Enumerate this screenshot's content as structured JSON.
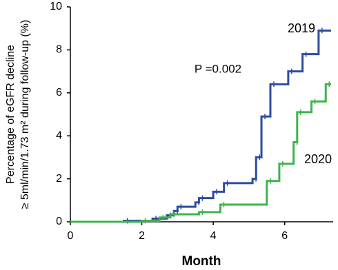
{
  "chart_data": {
    "type": "step",
    "x_label": "Month",
    "y_label": [
      "Percentage of eGFR decline",
      "≥ 5ml/min/1.73 m² during follow-up (%)"
    ],
    "annotations": [
      "P =0.002"
    ],
    "xlim": [
      0,
      7.3
    ],
    "xticks": [
      0,
      2,
      4,
      6
    ],
    "ylim": [
      0,
      10
    ],
    "yticks": [
      0,
      2,
      4,
      6,
      8,
      10
    ],
    "series": [
      {
        "name": "2019",
        "color": "#2e4ba0",
        "x": [
          0,
          1.5,
          2.3,
          2.7,
          2.9,
          3.0,
          3.5,
          3.6,
          4.0,
          4.3,
          5.1,
          5.2,
          5.35,
          5.6,
          6.1,
          6.5,
          6.95,
          7.3
        ],
        "values": [
          0,
          0.05,
          0.15,
          0.3,
          0.5,
          0.7,
          0.9,
          1.1,
          1.4,
          1.8,
          2.0,
          3.0,
          4.9,
          6.4,
          7.0,
          7.8,
          8.9,
          8.9
        ]
      },
      {
        "name": "2020",
        "color": "#3cb44a",
        "x": [
          0,
          2.0,
          2.5,
          2.8,
          3.6,
          4.2,
          5.5,
          5.85,
          6.25,
          6.35,
          6.75,
          7.15,
          7.3
        ],
        "values": [
          0,
          0.05,
          0.2,
          0.35,
          0.45,
          0.8,
          1.9,
          2.7,
          3.7,
          5.1,
          5.6,
          6.4,
          6.4
        ]
      }
    ]
  }
}
